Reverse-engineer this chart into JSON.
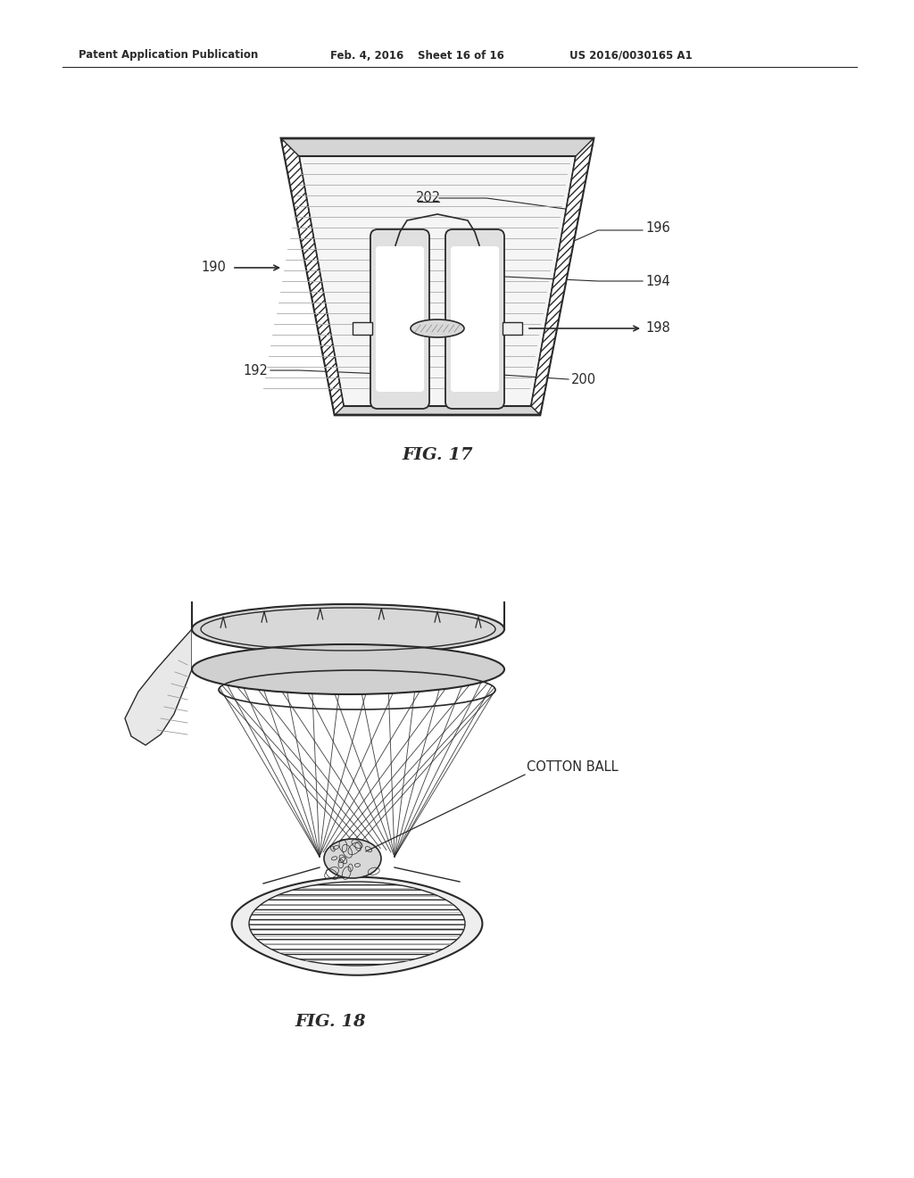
{
  "background_color": "#ffffff",
  "header_text": "Patent Application Publication",
  "header_date": "Feb. 4, 2016",
  "header_sheet": "Sheet 16 of 16",
  "header_patent": "US 2016/0030165 A1",
  "fig17_label": "FIG. 17",
  "fig18_label": "FIG. 18",
  "cotton_ball_label": "COTTON BALL",
  "line_color": "#2a2a2a",
  "gray1": "#aaaaaa",
  "gray2": "#cccccc",
  "gray3": "#e8e8e8"
}
